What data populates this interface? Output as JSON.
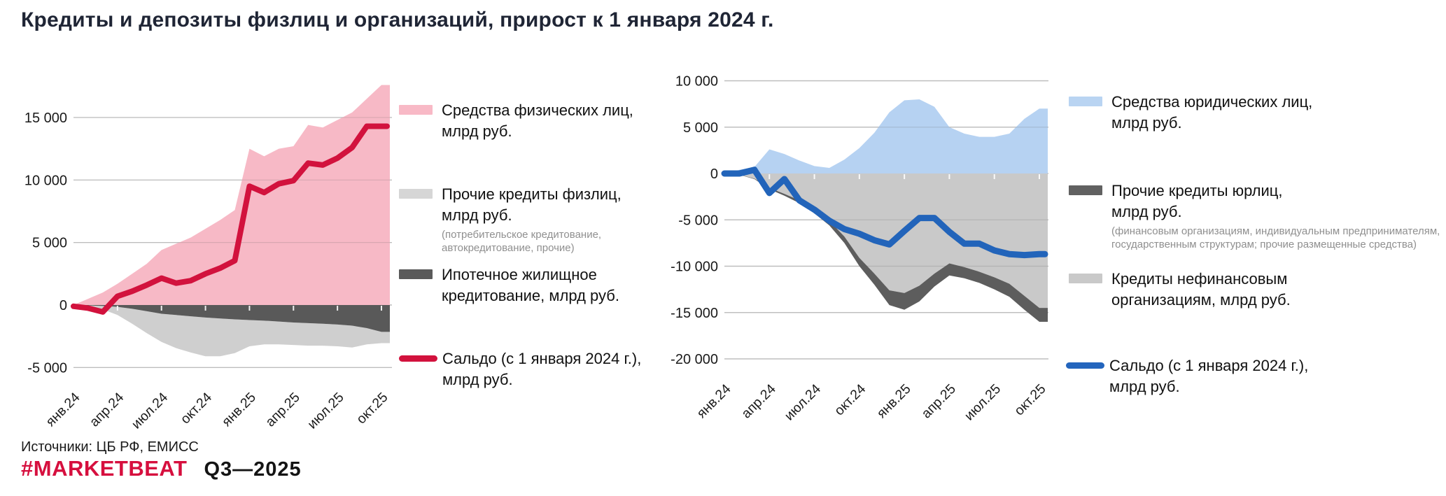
{
  "title": "Кредиты и депозиты физлиц и организаций, прирост к 1 января 2024 г.",
  "footer": {
    "sources": "Источники: ЦБ РФ, ЕМИСС",
    "brand": "#MARKETBEAT",
    "period": "Q3—2025"
  },
  "colors": {
    "background": "#ffffff",
    "title_text": "#1f2535",
    "grid": "#d4d4d4",
    "axis_text": "#1a1a1a",
    "legend_subtext": "#8f8f8f",
    "brand_red": "#d60f3e"
  },
  "chart_data": [
    {
      "type": "area",
      "panel": "individuals",
      "n": 22,
      "x_ticks": [
        {
          "m": 0,
          "label": "янв.24"
        },
        {
          "m": 3,
          "label": "апр.24"
        },
        {
          "m": 6,
          "label": "июл.24"
        },
        {
          "m": 9,
          "label": "окт.24"
        },
        {
          "m": 12,
          "label": "янв.25"
        },
        {
          "m": 15,
          "label": "апр.25"
        },
        {
          "m": 18,
          "label": "июл.25"
        },
        {
          "m": 21,
          "label": "окт.25"
        }
      ],
      "y_ticks": [
        {
          "v": 15000,
          "label": "15 000"
        },
        {
          "v": 10000,
          "label": "10 000"
        },
        {
          "v": 5000,
          "label": "5 000"
        },
        {
          "v": 0,
          "label": "0"
        },
        {
          "v": -5000,
          "label": "-5 000"
        }
      ],
      "ylim": [
        -6000,
        18500
      ],
      "series_values": {
        "deposits": [
          0,
          500,
          1000,
          1700,
          2500,
          3300,
          4400,
          4900,
          5400,
          6100,
          6800,
          7600,
          12500,
          11900,
          12500,
          12700,
          14400,
          14200,
          14800,
          15400,
          16500,
          17600
        ],
        "mortgage": [
          0,
          -30,
          -80,
          -150,
          -300,
          -500,
          -700,
          -800,
          -900,
          -1000,
          -1080,
          -1150,
          -1200,
          -1250,
          -1320,
          -1400,
          -1450,
          -1500,
          -1560,
          -1650,
          -1850,
          -2150
        ],
        "other_credits_bottom": [
          0,
          -100,
          -350,
          -800,
          -1500,
          -2250,
          -2950,
          -3450,
          -3800,
          -4100,
          -4100,
          -3850,
          -3300,
          -3150,
          -3150,
          -3200,
          -3250,
          -3250,
          -3300,
          -3400,
          -3150,
          -3050
        ],
        "saldo": [
          -100,
          -250,
          -550,
          700,
          1100,
          1600,
          2150,
          1750,
          1950,
          2500,
          2950,
          3550,
          9500,
          9000,
          9700,
          9950,
          11350,
          11200,
          11750,
          12600,
          14300,
          14300
        ]
      },
      "layers": [
        {
          "name": "Средства физических лиц",
          "fill": "#f7b9c6",
          "top": "deposits",
          "bottom": null
        },
        {
          "name": "Прочие кредиты физлиц",
          "fill": "#cfcfcf",
          "top": "mortgage",
          "bottom": "other_credits_bottom"
        },
        {
          "name": "Ипотечное жилищное кредитование",
          "fill": "#595959",
          "top": null,
          "bottom": "mortgage"
        }
      ],
      "line": {
        "name": "Сальдо",
        "key": "saldo",
        "color": "#d2123d",
        "width": 8
      },
      "legend": [
        {
          "label": "Средства физических лиц, млрд руб.",
          "kind": "area",
          "color": "#f8b9c6"
        },
        {
          "label": "Прочие кредиты физлиц, млрд руб.",
          "sub": "(потребительское кредитование, автокредитование, прочие)",
          "kind": "area",
          "color": "#d6d6d6"
        },
        {
          "label": "Ипотечное жилищное кредитование, млрд руб.",
          "kind": "area",
          "color": "#5a5a5a"
        },
        {
          "label": "Сальдо (с 1 января 2024 г.), млрд руб.",
          "kind": "line",
          "color": "#d2123d"
        }
      ]
    },
    {
      "type": "area",
      "panel": "organizations",
      "n": 22,
      "x_ticks": [
        {
          "m": 0,
          "label": "янв.24"
        },
        {
          "m": 3,
          "label": "апр.24"
        },
        {
          "m": 6,
          "label": "июл.24"
        },
        {
          "m": 9,
          "label": "окт.24"
        },
        {
          "m": 12,
          "label": "янв.25"
        },
        {
          "m": 15,
          "label": "апр.25"
        },
        {
          "m": 18,
          "label": "июл.25"
        },
        {
          "m": 21,
          "label": "окт.25"
        }
      ],
      "y_ticks": [
        {
          "v": 10000,
          "label": "10 000"
        },
        {
          "v": 5000,
          "label": "5 000"
        },
        {
          "v": 0,
          "label": "0"
        },
        {
          "v": -5000,
          "label": "-5 000"
        },
        {
          "v": -10000,
          "label": "-10 000"
        },
        {
          "v": -15000,
          "label": "-15 000"
        },
        {
          "v": -20000,
          "label": "-20 000"
        }
      ],
      "ylim": [
        -21000,
        11000
      ],
      "series_values": {
        "deposits": [
          0,
          400,
          700,
          2600,
          2100,
          1400,
          800,
          600,
          1500,
          2750,
          4400,
          6600,
          7900,
          8000,
          7200,
          5000,
          4300,
          3950,
          3950,
          4300,
          5900,
          7000
        ],
        "nonfin_credits_bottom": [
          0,
          -130,
          -550,
          -1550,
          -2200,
          -2900,
          -3900,
          -5100,
          -6800,
          -9100,
          -10800,
          -12600,
          -12900,
          -12100,
          -10800,
          -9700,
          -10100,
          -10600,
          -11200,
          -11900,
          -13200,
          -14500
        ],
        "other_credits_bottom": [
          0,
          -150,
          -600,
          -1700,
          -2400,
          -3200,
          -4300,
          -5600,
          -7500,
          -10000,
          -12000,
          -14200,
          -14700,
          -13800,
          -12200,
          -11000,
          -11300,
          -11800,
          -12500,
          -13300,
          -14700,
          -16000
        ],
        "saldo": [
          0,
          0,
          400,
          -2100,
          -600,
          -2900,
          -3900,
          -5100,
          -6000,
          -6500,
          -7200,
          -7650,
          -6200,
          -4800,
          -4800,
          -6300,
          -7570,
          -7570,
          -8300,
          -8700,
          -8800,
          -8700
        ]
      },
      "layers": [
        {
          "name": "Средства юридических лиц",
          "fill": "#b6d2f2",
          "top": "deposits",
          "bottom": null
        },
        {
          "name": "Кредиты нефинансовым организациям",
          "fill": "#c9c9c9",
          "top": null,
          "bottom": "nonfin_credits_bottom"
        },
        {
          "name": "Прочие кредиты юрлиц",
          "fill": "#5d5d5d",
          "top": "nonfin_credits_bottom",
          "bottom": "other_credits_bottom"
        }
      ],
      "line": {
        "name": "Сальдо",
        "key": "saldo",
        "color": "#2264ba",
        "width": 9
      },
      "legend": [
        {
          "label": "Средства юридических лиц, млрд руб.",
          "kind": "area",
          "color": "#b9d4f2"
        },
        {
          "label": "Прочие кредиты юрлиц, млрд руб.",
          "sub": "(финансовым организациям, индивидуальным предпринимателям, государственным структурам; прочие размещенные средства)",
          "kind": "area",
          "color": "#616161"
        },
        {
          "label": "Кредиты нефинансовым организациям, млрд руб.",
          "kind": "area",
          "color": "#c9c9c9"
        },
        {
          "label": "Сальдо (с 1 января 2024 г.), млрд руб.",
          "kind": "line",
          "color": "#2365bd"
        }
      ]
    }
  ]
}
